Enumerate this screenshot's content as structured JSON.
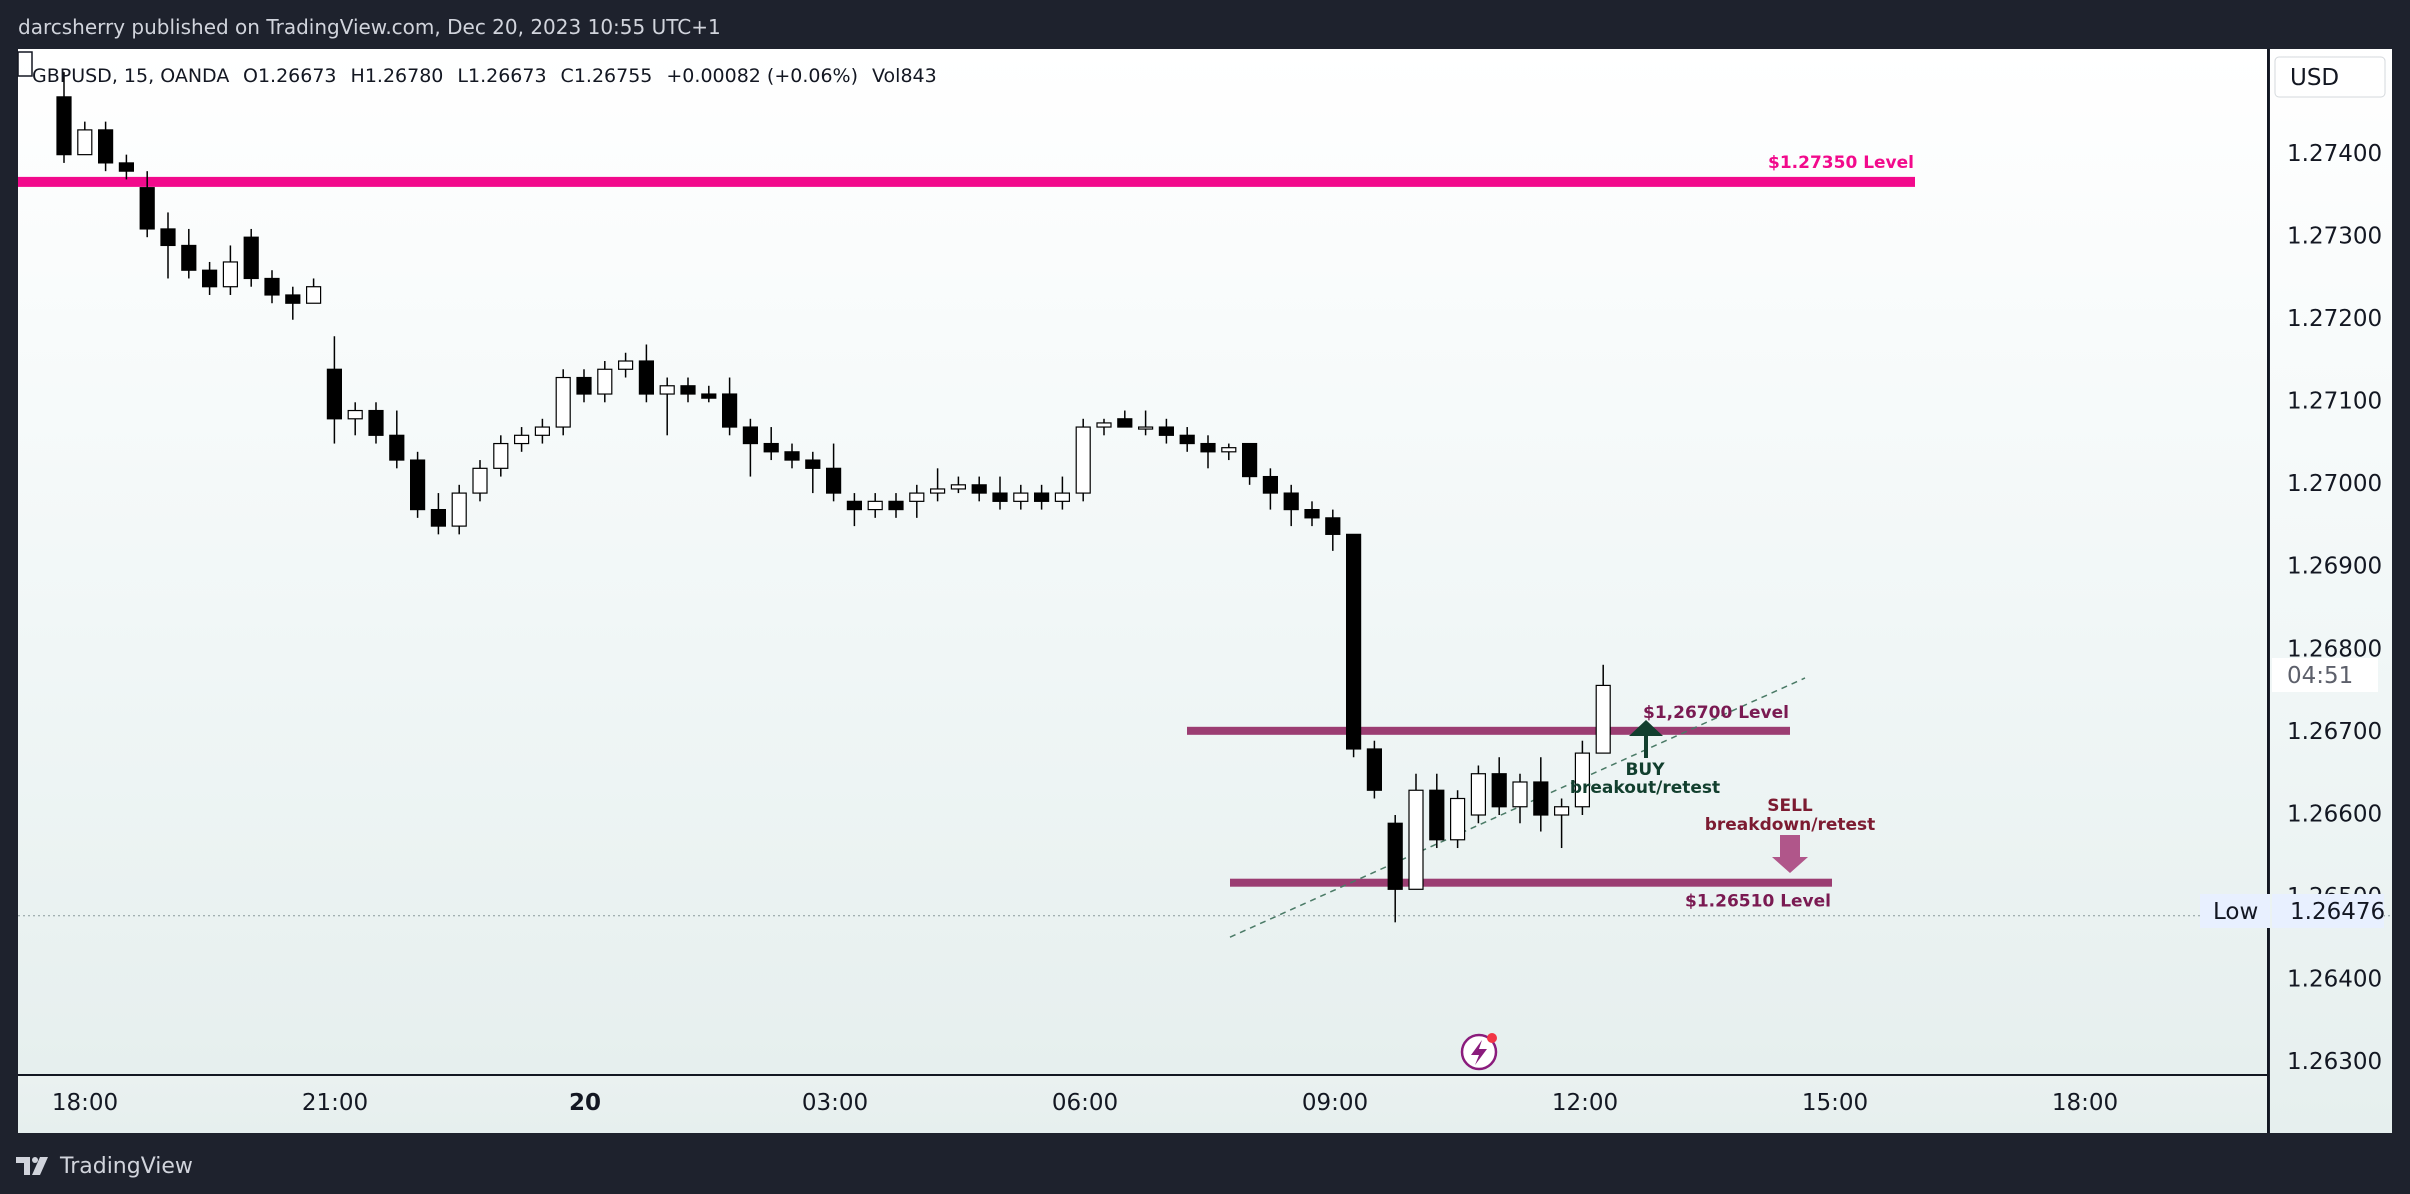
{
  "header": {
    "publish_line": "darcsherry published on TradingView.com, Dec 20, 2023 10:55 UTC+1"
  },
  "legend": {
    "symbol": "GBPUSD",
    "interval": "15",
    "source": "OANDA",
    "open": "O1.26673",
    "high": "H1.26780",
    "low": "L1.26673",
    "close": "C1.26755",
    "change": "+0.00082 (+0.06%)",
    "volume": "Vol843"
  },
  "price_axis": {
    "currency": "USD",
    "low_label": "Low",
    "low_value": "1.26476",
    "countdown": "04:51"
  },
  "footer": {
    "brand": "TradingView"
  },
  "colors": {
    "resistance": "#f20a8c",
    "support": "#9b3d72",
    "buy_arrow": "#123f2e",
    "sell_arrow": "#b0568a",
    "up_candle": "#ffffff",
    "down_candle": "#000000"
  },
  "chart_data": {
    "type": "candlestick",
    "symbol": "GBPUSD",
    "interval_minutes": 15,
    "ylim": [
      1.2625,
      1.275
    ],
    "y_ticks": [
      "1.27400",
      "1.27300",
      "1.27200",
      "1.27100",
      "1.27000",
      "1.26900",
      "1.26800",
      "1.26700",
      "1.26600",
      "1.26500",
      "1.26400",
      "1.26300"
    ],
    "x_ticks": [
      {
        "label": "18:00",
        "bold": false
      },
      {
        "label": "21:00",
        "bold": false
      },
      {
        "label": "20",
        "bold": true
      },
      {
        "label": "03:00",
        "bold": false
      },
      {
        "label": "06:00",
        "bold": false
      },
      {
        "label": "09:00",
        "bold": false
      },
      {
        "label": "12:00",
        "bold": false
      },
      {
        "label": "15:00",
        "bold": false
      },
      {
        "label": "18:00",
        "bold": false
      }
    ],
    "candles": [
      {
        "o": 1.27468,
        "h": 1.27498,
        "l": 1.27388,
        "c": 1.27398
      },
      {
        "o": 1.27398,
        "h": 1.27438,
        "l": 1.27408,
        "c": 1.27428
      },
      {
        "o": 1.27428,
        "h": 1.27438,
        "l": 1.27378,
        "c": 1.27388
      },
      {
        "o": 1.27388,
        "h": 1.27398,
        "l": 1.27368,
        "c": 1.27378
      },
      {
        "o": 1.27358,
        "h": 1.27378,
        "l": 1.27298,
        "c": 1.27308
      },
      {
        "o": 1.27308,
        "h": 1.27328,
        "l": 1.27248,
        "c": 1.27288
      },
      {
        "o": 1.27288,
        "h": 1.27308,
        "l": 1.27248,
        "c": 1.27258
      },
      {
        "o": 1.27258,
        "h": 1.27268,
        "l": 1.27228,
        "c": 1.27238
      },
      {
        "o": 1.27238,
        "h": 1.27288,
        "l": 1.27228,
        "c": 1.27268
      },
      {
        "o": 1.27298,
        "h": 1.27308,
        "l": 1.27238,
        "c": 1.27248
      },
      {
        "o": 1.27248,
        "h": 1.27258,
        "l": 1.27218,
        "c": 1.27228
      },
      {
        "o": 1.27228,
        "h": 1.27238,
        "l": 1.27198,
        "c": 1.27218
      },
      {
        "o": 1.27218,
        "h": 1.27248,
        "l": 1.27218,
        "c": 1.27238
      },
      {
        "o": 1.27138,
        "h": 1.27178,
        "l": 1.27048,
        "c": 1.27078
      },
      {
        "o": 1.27078,
        "h": 1.27098,
        "l": 1.27058,
        "c": 1.27088
      },
      {
        "o": 1.27088,
        "h": 1.27098,
        "l": 1.27048,
        "c": 1.27058
      },
      {
        "o": 1.27058,
        "h": 1.27088,
        "l": 1.27018,
        "c": 1.27028
      },
      {
        "o": 1.27028,
        "h": 1.27038,
        "l": 1.26958,
        "c": 1.26968
      },
      {
        "o": 1.26968,
        "h": 1.26988,
        "l": 1.26938,
        "c": 1.26948
      },
      {
        "o": 1.26948,
        "h": 1.26998,
        "l": 1.26938,
        "c": 1.26988
      },
      {
        "o": 1.26988,
        "h": 1.27028,
        "l": 1.26978,
        "c": 1.27018
      },
      {
        "o": 1.27018,
        "h": 1.27058,
        "l": 1.27008,
        "c": 1.27048
      },
      {
        "o": 1.27048,
        "h": 1.27068,
        "l": 1.27038,
        "c": 1.27058
      },
      {
        "o": 1.27058,
        "h": 1.27078,
        "l": 1.27048,
        "c": 1.27068
      },
      {
        "o": 1.27068,
        "h": 1.27138,
        "l": 1.27058,
        "c": 1.27128
      },
      {
        "o": 1.27128,
        "h": 1.27138,
        "l": 1.27098,
        "c": 1.27108
      },
      {
        "o": 1.27108,
        "h": 1.27148,
        "l": 1.27098,
        "c": 1.27138
      },
      {
        "o": 1.27138,
        "h": 1.27158,
        "l": 1.27128,
        "c": 1.27148
      },
      {
        "o": 1.27148,
        "h": 1.27168,
        "l": 1.27098,
        "c": 1.27108
      },
      {
        "o": 1.27108,
        "h": 1.27128,
        "l": 1.27058,
        "c": 1.27118
      },
      {
        "o": 1.27118,
        "h": 1.27128,
        "l": 1.27098,
        "c": 1.27108
      },
      {
        "o": 1.27108,
        "h": 1.27118,
        "l": 1.27098,
        "c": 1.27103
      },
      {
        "o": 1.27108,
        "h": 1.27128,
        "l": 1.27058,
        "c": 1.27068
      },
      {
        "o": 1.27068,
        "h": 1.27078,
        "l": 1.27008,
        "c": 1.27048
      },
      {
        "o": 1.27048,
        "h": 1.27068,
        "l": 1.27028,
        "c": 1.27038
      },
      {
        "o": 1.27038,
        "h": 1.27048,
        "l": 1.27018,
        "c": 1.27028
      },
      {
        "o": 1.27028,
        "h": 1.27038,
        "l": 1.26988,
        "c": 1.27018
      },
      {
        "o": 1.27018,
        "h": 1.27048,
        "l": 1.26978,
        "c": 1.26988
      },
      {
        "o": 1.26978,
        "h": 1.26988,
        "l": 1.26948,
        "c": 1.26968
      },
      {
        "o": 1.26968,
        "h": 1.26988,
        "l": 1.26958,
        "c": 1.26978
      },
      {
        "o": 1.26978,
        "h": 1.26988,
        "l": 1.26958,
        "c": 1.26968
      },
      {
        "o": 1.26978,
        "h": 1.26998,
        "l": 1.26958,
        "c": 1.26988
      },
      {
        "o": 1.26988,
        "h": 1.27018,
        "l": 1.26978,
        "c": 1.26993
      },
      {
        "o": 1.26993,
        "h": 1.27008,
        "l": 1.26988,
        "c": 1.26998
      },
      {
        "o": 1.26998,
        "h": 1.27008,
        "l": 1.26978,
        "c": 1.26988
      },
      {
        "o": 1.26988,
        "h": 1.27008,
        "l": 1.26968,
        "c": 1.26978
      },
      {
        "o": 1.26978,
        "h": 1.26998,
        "l": 1.26968,
        "c": 1.26988
      },
      {
        "o": 1.26988,
        "h": 1.26998,
        "l": 1.26968,
        "c": 1.26978
      },
      {
        "o": 1.26978,
        "h": 1.27008,
        "l": 1.26968,
        "c": 1.26988
      },
      {
        "o": 1.26988,
        "h": 1.27078,
        "l": 1.26978,
        "c": 1.27068
      },
      {
        "o": 1.27068,
        "h": 1.27078,
        "l": 1.27058,
        "c": 1.27073
      },
      {
        "o": 1.27078,
        "h": 1.27088,
        "l": 1.27068,
        "c": 1.27068
      },
      {
        "o": 1.27068,
        "h": 1.27088,
        "l": 1.27058,
        "c": 1.27068
      },
      {
        "o": 1.27068,
        "h": 1.27078,
        "l": 1.27048,
        "c": 1.27058
      },
      {
        "o": 1.27058,
        "h": 1.27068,
        "l": 1.27038,
        "c": 1.27048
      },
      {
        "o": 1.27048,
        "h": 1.27058,
        "l": 1.27018,
        "c": 1.27038
      },
      {
        "o": 1.27038,
        "h": 1.27048,
        "l": 1.27028,
        "c": 1.27043
      },
      {
        "o": 1.27048,
        "h": 1.27048,
        "l": 1.26998,
        "c": 1.27008
      },
      {
        "o": 1.27008,
        "h": 1.27018,
        "l": 1.26968,
        "c": 1.26988
      },
      {
        "o": 1.26988,
        "h": 1.26998,
        "l": 1.26948,
        "c": 1.26968
      },
      {
        "o": 1.26968,
        "h": 1.26978,
        "l": 1.26948,
        "c": 1.26958
      },
      {
        "o": 1.26958,
        "h": 1.26968,
        "l": 1.26918,
        "c": 1.26938
      },
      {
        "o": 1.26938,
        "h": 1.26938,
        "l": 1.26668,
        "c": 1.26678
      },
      {
        "o": 1.26678,
        "h": 1.26688,
        "l": 1.26618,
        "c": 1.26628
      },
      {
        "o": 1.26588,
        "h": 1.26598,
        "l": 1.26468,
        "c": 1.26508
      },
      {
        "o": 1.26508,
        "h": 1.26648,
        "l": 1.26508,
        "c": 1.26628
      },
      {
        "o": 1.26628,
        "h": 1.26648,
        "l": 1.26558,
        "c": 1.26568
      },
      {
        "o": 1.26568,
        "h": 1.26628,
        "l": 1.26558,
        "c": 1.26618
      },
      {
        "o": 1.26598,
        "h": 1.26658,
        "l": 1.26588,
        "c": 1.26648
      },
      {
        "o": 1.26648,
        "h": 1.26668,
        "l": 1.26598,
        "c": 1.26608
      },
      {
        "o": 1.26608,
        "h": 1.26648,
        "l": 1.26588,
        "c": 1.26638
      },
      {
        "o": 1.26638,
        "h": 1.26668,
        "l": 1.26578,
        "c": 1.26598
      },
      {
        "o": 1.26598,
        "h": 1.26618,
        "l": 1.26558,
        "c": 1.26608
      },
      {
        "o": 1.26608,
        "h": 1.26688,
        "l": 1.26598,
        "c": 1.26673
      },
      {
        "o": 1.26673,
        "h": 1.2678,
        "l": 1.26673,
        "c": 1.26755
      }
    ],
    "levels": [
      {
        "price": 1.27365,
        "label": "$1.27350 Level",
        "kind": "resistance"
      },
      {
        "price": 1.267,
        "label": "$1,26700 Level",
        "kind": "support-upper"
      },
      {
        "price": 1.26516,
        "label": "$1.26510 Level",
        "kind": "support-lower"
      }
    ],
    "low_price": 1.26476,
    "trendline": [
      {
        "x": 1230,
        "y": 1.2645
      },
      {
        "x": 1805,
        "y": 1.26764
      }
    ],
    "annotations": {
      "buy_title": "BUY",
      "buy_sub": "breakout/retest",
      "sell_title": "SELL",
      "sell_sub": "breakdown/retest"
    }
  }
}
